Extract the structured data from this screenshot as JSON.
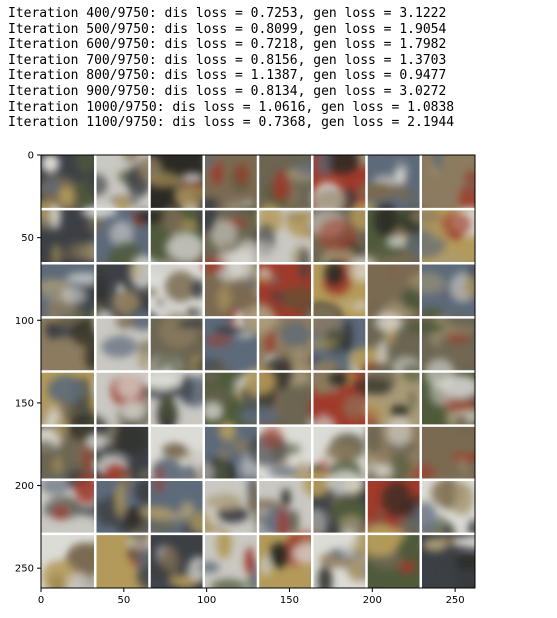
{
  "output_log": [
    "Iteration 400/9750: dis loss = 0.7253, gen loss = 3.1222",
    "Iteration 500/9750: dis loss = 0.8099, gen loss = 1.9054",
    "Iteration 600/9750: dis loss = 0.7218, gen loss = 1.7982",
    "Iteration 700/9750: dis loss = 0.8156, gen loss = 1.3703",
    "Iteration 800/9750: dis loss = 1.1387, gen loss = 0.9477",
    "Iteration 900/9750: dis loss = 0.8134, gen loss = 3.0272",
    "Iteration 1000/9750: dis loss = 1.0616, gen loss = 1.0838",
    "Iteration 1100/9750: dis loss = 0.7368, gen loss = 2.1944"
  ],
  "image_plot": {
    "grid": {
      "rows": 8,
      "cols": 8
    },
    "x_range": [
      0,
      262
    ],
    "y_range": [
      0,
      262
    ],
    "x_ticks": [
      0,
      50,
      100,
      150,
      200,
      250
    ],
    "y_ticks": [
      0,
      50,
      100,
      150,
      200,
      250
    ],
    "x_tick_labels": [
      "0",
      "50",
      "100",
      "150",
      "200",
      "250"
    ],
    "y_tick_labels": [
      "0",
      "50",
      "100",
      "150",
      "200",
      "250"
    ],
    "y_inverted": true,
    "tile_palette": [
      "#2b2a24",
      "#6b6552",
      "#a89a78",
      "#c9c8c2",
      "#4f5a3b",
      "#7a6a52",
      "#dcdcd6",
      "#3c3f44",
      "#8c7b5f",
      "#5d6a7a",
      "#b39a5a",
      "#a03a2a"
    ]
  }
}
